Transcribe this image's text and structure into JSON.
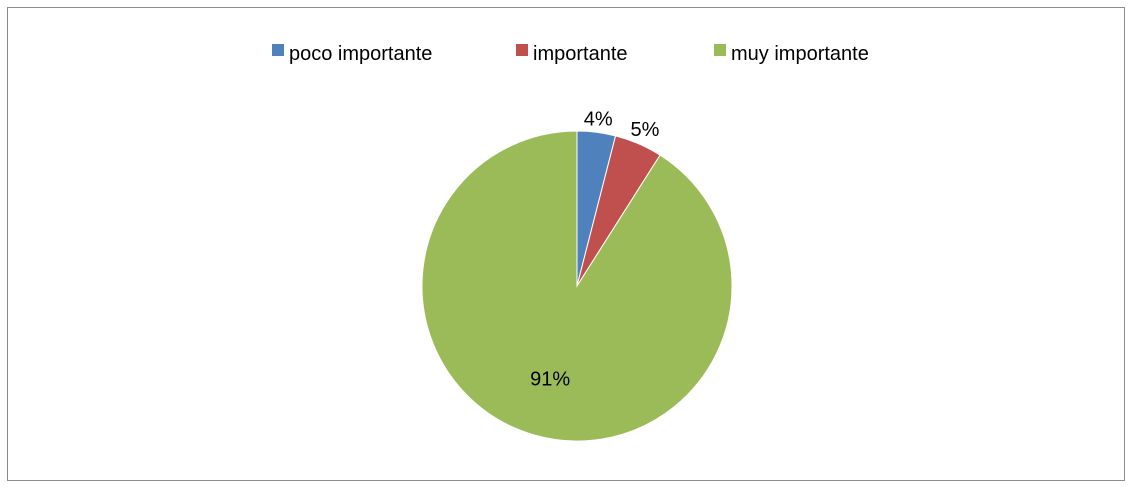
{
  "chart_data": {
    "type": "pie",
    "categories": [
      "poco importante",
      "importante",
      "muy importante"
    ],
    "values": [
      4,
      5,
      91
    ],
    "labels": [
      "4%",
      "5%",
      "91%"
    ],
    "colors": [
      "#4f81bd",
      "#c0504d",
      "#9bbb59"
    ],
    "legend_position": "top",
    "title": "",
    "start_angle": "12 o'clock",
    "direction": "clockwise"
  }
}
